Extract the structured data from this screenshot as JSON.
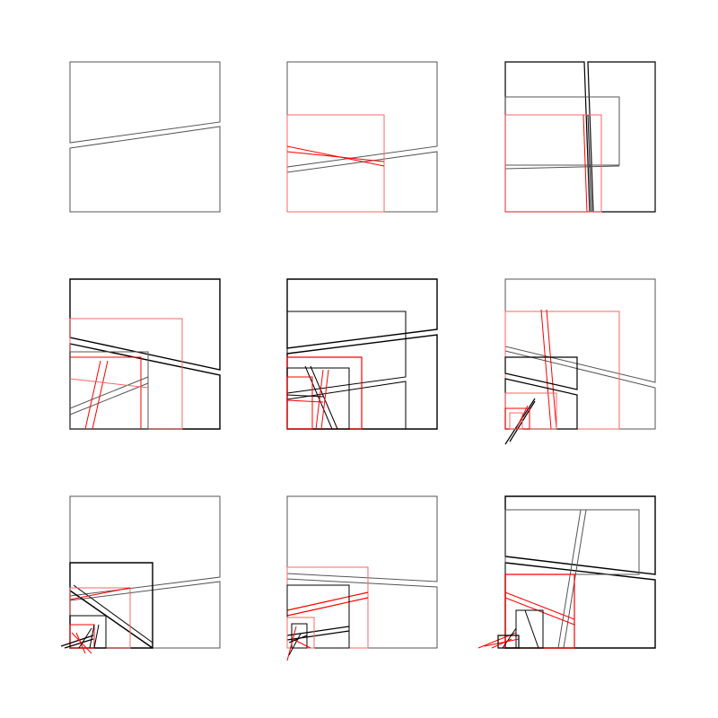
{
  "colors": {
    "background": "#ffffff",
    "ink": "#000000",
    "ink_light": "#555555",
    "accent": "#ff0000",
    "accent_light": "#ff6666"
  },
  "grid": {
    "rows": 3,
    "columns": 3,
    "panels": 9
  }
}
